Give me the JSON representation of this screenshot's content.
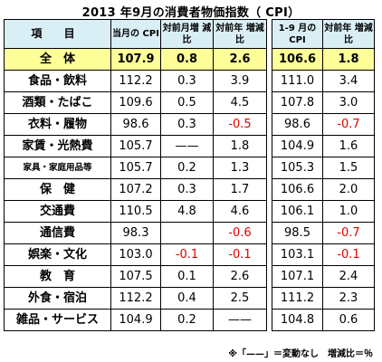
{
  "title": "2013 年9月の消費者物価指数（ CPI）",
  "main_headers": {
    "item": "項 目",
    "cpi": "当月の CPI",
    "mom": "対前月増 減比",
    "yoy": "対前年 増減比"
  },
  "side_headers": {
    "cpi": "1-9 月の CPI",
    "yoy": "対前年 増減比"
  },
  "rows": [
    {
      "name": "全　体",
      "cpi": "107.9",
      "mom": "0.8",
      "yoy": "2.6",
      "ytd_cpi": "106.6",
      "ytd_yoy": "1.8"
    },
    {
      "name": "食品・飲料",
      "cpi": "112.2",
      "mom": "0.3",
      "yoy": "3.9",
      "ytd_cpi": "111.0",
      "ytd_yoy": "3.4"
    },
    {
      "name": "酒類・たばこ",
      "cpi": "109.6",
      "mom": "0.5",
      "yoy": "4.5",
      "ytd_cpi": "107.8",
      "ytd_yoy": "3.0"
    },
    {
      "name": "衣料・履物",
      "cpi": "98.6",
      "mom": "0.3",
      "yoy": "-0.5",
      "ytd_cpi": "98.6",
      "ytd_yoy": "-0.7"
    },
    {
      "name": "家賃・光熱費",
      "cpi": "105.7",
      "mom": "——",
      "yoy": "1.8",
      "ytd_cpi": "104.9",
      "ytd_yoy": "1.6"
    },
    {
      "name": "家具・家庭用品等",
      "cpi": "105.7",
      "mom": "0.2",
      "yoy": "1.3",
      "ytd_cpi": "105.3",
      "ytd_yoy": "1.5"
    },
    {
      "name": "保　健",
      "cpi": "107.2",
      "mom": "0.3",
      "yoy": "1.7",
      "ytd_cpi": "106.6",
      "ytd_yoy": "2.0"
    },
    {
      "name": "交通費",
      "cpi": "110.5",
      "mom": "4.8",
      "yoy": "4.6",
      "ytd_cpi": "106.1",
      "ytd_yoy": "1.0"
    },
    {
      "name": "通信費",
      "cpi": "98.3",
      "mom": "",
      "yoy": "-0.6",
      "ytd_cpi": "98.5",
      "ytd_yoy": "-0.7"
    },
    {
      "name": "娯楽・文化",
      "cpi": "103.0",
      "mom": "-0.1",
      "yoy": "-0.1",
      "ytd_cpi": "103.1",
      "ytd_yoy": "-0.1"
    },
    {
      "name": "教　育",
      "cpi": "107.5",
      "mom": "0.1",
      "yoy": "2.6",
      "ytd_cpi": "107.1",
      "ytd_yoy": "2.4"
    },
    {
      "name": "外食・宿泊",
      "cpi": "112.2",
      "mom": "0.4",
      "yoy": "2.5",
      "ytd_cpi": "111.2",
      "ytd_yoy": "2.3"
    },
    {
      "name": "雑品・サービス",
      "cpi": "104.9",
      "mom": "0.2",
      "yoy": "——",
      "ytd_cpi": "104.8",
      "ytd_yoy": "0.6"
    }
  ],
  "footnote": "※「——」＝変動なし　増減比＝％",
  "colors": {
    "header_bg": "#d9eef5",
    "highlight_bg": "#ffff99",
    "negative": "#e00000"
  }
}
